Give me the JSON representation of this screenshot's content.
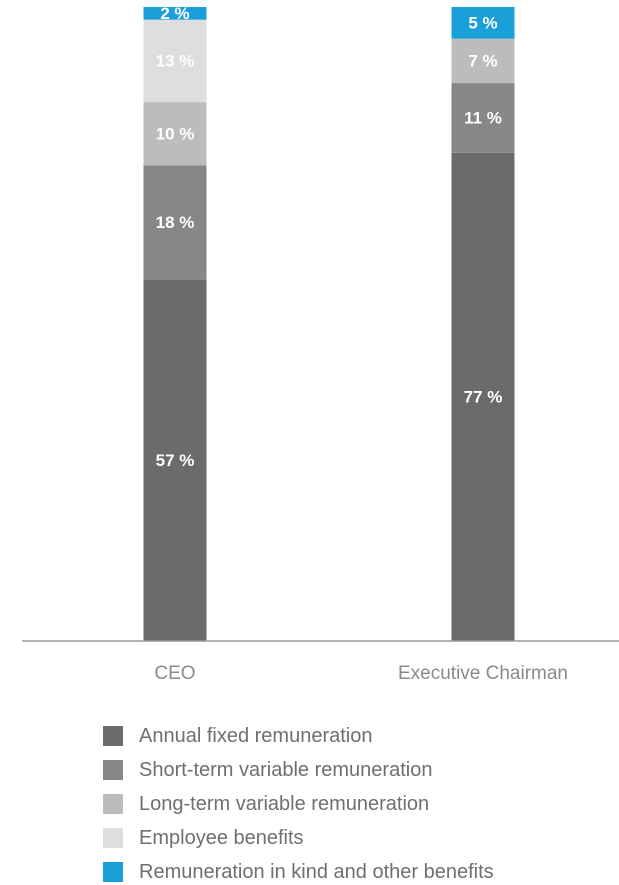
{
  "chart_data": {
    "type": "bar",
    "stacked": true,
    "categories": [
      "CEO",
      "Executive Chairman"
    ],
    "series": [
      {
        "name": "Annual fixed remuneration",
        "color": "#6b6b6d",
        "values": [
          57,
          77
        ],
        "labels": [
          "57 %",
          "77 %"
        ]
      },
      {
        "name": "Short-term variable remuneration",
        "color": "#87878a",
        "values": [
          18,
          11
        ],
        "labels": [
          "18 %",
          "11 %"
        ]
      },
      {
        "name": "Long-term variable remuneration",
        "color": "#bcbcbd",
        "values": [
          10,
          7
        ],
        "labels": [
          "10 %",
          "7 %"
        ]
      },
      {
        "name": "Employee benefits",
        "color": "#dedee0",
        "values": [
          13,
          0
        ],
        "labels": [
          "13 %",
          ""
        ]
      },
      {
        "name": "Remuneration in kind and other benefits",
        "color": "#1a9fd8",
        "values": [
          2,
          5
        ],
        "labels": [
          "2 %",
          "5 %"
        ]
      }
    ],
    "ylim": [
      0,
      100
    ],
    "unit": "%",
    "grid": false,
    "legend_position": "bottom"
  }
}
